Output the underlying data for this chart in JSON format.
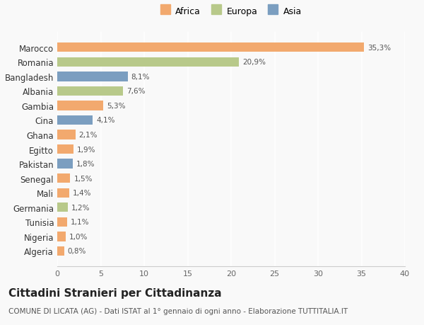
{
  "countries": [
    "Algeria",
    "Nigeria",
    "Tunisia",
    "Germania",
    "Mali",
    "Senegal",
    "Pakistan",
    "Egitto",
    "Ghana",
    "Cina",
    "Gambia",
    "Albania",
    "Bangladesh",
    "Romania",
    "Marocco"
  ],
  "values": [
    0.8,
    1.0,
    1.1,
    1.2,
    1.4,
    1.5,
    1.8,
    1.9,
    2.1,
    4.1,
    5.3,
    7.6,
    8.1,
    20.9,
    35.3
  ],
  "labels": [
    "0,8%",
    "1,0%",
    "1,1%",
    "1,2%",
    "1,4%",
    "1,5%",
    "1,8%",
    "1,9%",
    "2,1%",
    "4,1%",
    "5,3%",
    "7,6%",
    "8,1%",
    "20,9%",
    "35,3%"
  ],
  "continents": [
    "Africa",
    "Africa",
    "Africa",
    "Europa",
    "Africa",
    "Africa",
    "Asia",
    "Africa",
    "Africa",
    "Asia",
    "Africa",
    "Europa",
    "Asia",
    "Europa",
    "Africa"
  ],
  "colors": {
    "Africa": "#F2A96E",
    "Europa": "#B8C98A",
    "Asia": "#7B9EC0"
  },
  "legend_order": [
    "Africa",
    "Europa",
    "Asia"
  ],
  "xlim": [
    0,
    40
  ],
  "xticks": [
    0,
    5,
    10,
    15,
    20,
    25,
    30,
    35,
    40
  ],
  "title": "Cittadini Stranieri per Cittadinanza",
  "subtitle": "COMUNE DI LICATA (AG) - Dati ISTAT al 1° gennaio di ogni anno - Elaborazione TUTTITALIA.IT",
  "background_color": "#f9f9f9",
  "title_fontsize": 11,
  "subtitle_fontsize": 7.5,
  "label_fontsize": 7.5,
  "ytick_fontsize": 8.5,
  "xtick_fontsize": 8
}
